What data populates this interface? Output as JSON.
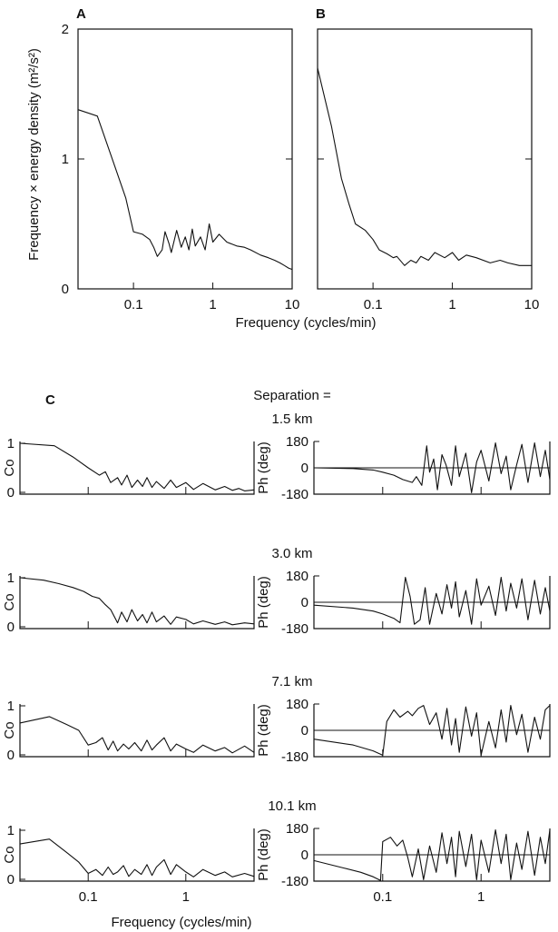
{
  "chart_data": [
    {
      "id": "A",
      "type": "line",
      "panel_label": "A",
      "xscale": "log",
      "xlim": [
        0.02,
        10
      ],
      "ylim": [
        0,
        2
      ],
      "xticks": [
        0.1,
        1,
        10
      ],
      "xtick_labels": [
        "0.1",
        "1",
        "10"
      ],
      "yticks": [
        0,
        1,
        2
      ],
      "ytick_labels": [
        "0",
        "1",
        "2"
      ],
      "x": [
        0.02,
        0.035,
        0.06,
        0.08,
        0.1,
        0.13,
        0.16,
        0.18,
        0.2,
        0.23,
        0.25,
        0.28,
        0.3,
        0.35,
        0.4,
        0.45,
        0.5,
        0.55,
        0.6,
        0.7,
        0.8,
        0.9,
        1.0,
        1.2,
        1.5,
        2,
        2.5,
        3,
        4,
        5,
        6,
        7,
        8,
        9,
        10
      ],
      "y": [
        1.38,
        1.33,
        0.92,
        0.7,
        0.44,
        0.42,
        0.38,
        0.32,
        0.25,
        0.3,
        0.44,
        0.35,
        0.28,
        0.45,
        0.32,
        0.4,
        0.3,
        0.46,
        0.33,
        0.4,
        0.3,
        0.5,
        0.36,
        0.42,
        0.36,
        0.33,
        0.32,
        0.3,
        0.26,
        0.24,
        0.22,
        0.2,
        0.18,
        0.16,
        0.15
      ]
    },
    {
      "id": "B",
      "type": "line",
      "panel_label": "B",
      "xscale": "log",
      "xlim": [
        0.02,
        10
      ],
      "ylim": [
        0,
        2
      ],
      "xticks": [
        0.1,
        1,
        10
      ],
      "xtick_labels": [
        "0.1",
        "1",
        "10"
      ],
      "yticks": [
        0,
        1,
        2
      ],
      "x": [
        0.02,
        0.03,
        0.04,
        0.05,
        0.06,
        0.08,
        0.1,
        0.12,
        0.15,
        0.18,
        0.2,
        0.25,
        0.3,
        0.35,
        0.4,
        0.5,
        0.6,
        0.8,
        1.0,
        1.2,
        1.5,
        2,
        3,
        4,
        5,
        7,
        9,
        10
      ],
      "y": [
        1.7,
        1.25,
        0.85,
        0.65,
        0.5,
        0.45,
        0.38,
        0.3,
        0.27,
        0.24,
        0.25,
        0.18,
        0.22,
        0.2,
        0.25,
        0.22,
        0.28,
        0.24,
        0.28,
        0.22,
        0.26,
        0.24,
        0.2,
        0.22,
        0.2,
        0.18,
        0.18,
        0.18
      ]
    },
    {
      "id": "C",
      "type": "line",
      "panel_label": "C",
      "title": "Separation =",
      "xscale": "log",
      "xlim": [
        0.02,
        5
      ],
      "xticks": [
        0.1,
        1
      ],
      "xtick_labels": [
        "0.1",
        "1"
      ],
      "coherence_ylim": [
        0,
        1
      ],
      "coherence_yticks": [
        0,
        1
      ],
      "coherence_ylabel": "Co",
      "phase_ylim": [
        -180,
        180
      ],
      "phase_yticks": [
        -180,
        0,
        180
      ],
      "phase_ylabel": "Ph (deg)",
      "xlabel": "Frequency (cycles/min)",
      "rows": [
        {
          "separation": "1.5 km",
          "coherence": {
            "x": [
              0.02,
              0.045,
              0.07,
              0.1,
              0.13,
              0.15,
              0.17,
              0.2,
              0.22,
              0.25,
              0.28,
              0.32,
              0.36,
              0.4,
              0.45,
              0.5,
              0.6,
              0.7,
              0.8,
              1.0,
              1.2,
              1.5,
              2,
              2.5,
              3,
              3.5,
              4,
              5
            ],
            "y": [
              1.0,
              0.95,
              0.72,
              0.5,
              0.35,
              0.42,
              0.2,
              0.3,
              0.15,
              0.35,
              0.1,
              0.25,
              0.12,
              0.3,
              0.1,
              0.22,
              0.08,
              0.25,
              0.1,
              0.2,
              0.06,
              0.18,
              0.05,
              0.12,
              0.04,
              0.08,
              0.03,
              0.05
            ]
          },
          "phase": {
            "x": [
              0.02,
              0.05,
              0.08,
              0.1,
              0.13,
              0.16,
              0.2,
              0.22,
              0.25,
              0.28,
              0.3,
              0.33,
              0.36,
              0.4,
              0.44,
              0.5,
              0.55,
              0.6,
              0.7,
              0.8,
              0.9,
              1.0,
              1.2,
              1.4,
              1.6,
              1.8,
              2.0,
              2.3,
              2.6,
              3.0,
              3.5,
              4.0,
              4.5,
              5.0
            ],
            "y": [
              0,
              -5,
              -15,
              -30,
              -50,
              -80,
              -100,
              -60,
              -120,
              150,
              -30,
              60,
              -150,
              90,
              20,
              -120,
              150,
              -60,
              100,
              -170,
              40,
              120,
              -90,
              170,
              -40,
              80,
              -150,
              20,
              160,
              -100,
              170,
              -60,
              120,
              -80
            ]
          }
        },
        {
          "separation": "3.0 km",
          "coherence": {
            "x": [
              0.02,
              0.035,
              0.05,
              0.07,
              0.09,
              0.11,
              0.13,
              0.15,
              0.17,
              0.2,
              0.22,
              0.25,
              0.28,
              0.32,
              0.36,
              0.4,
              0.45,
              0.5,
              0.6,
              0.7,
              0.8,
              1.0,
              1.2,
              1.5,
              2,
              2.5,
              3,
              4,
              5
            ],
            "y": [
              1.0,
              0.95,
              0.88,
              0.8,
              0.72,
              0.62,
              0.58,
              0.45,
              0.35,
              0.08,
              0.3,
              0.1,
              0.35,
              0.12,
              0.25,
              0.08,
              0.3,
              0.1,
              0.22,
              0.05,
              0.2,
              0.15,
              0.06,
              0.12,
              0.05,
              0.1,
              0.04,
              0.08,
              0.06
            ]
          },
          "phase": {
            "x": [
              0.02,
              0.05,
              0.08,
              0.1,
              0.13,
              0.15,
              0.17,
              0.19,
              0.21,
              0.24,
              0.27,
              0.3,
              0.35,
              0.4,
              0.45,
              0.5,
              0.55,
              0.6,
              0.7,
              0.8,
              0.9,
              1.0,
              1.2,
              1.4,
              1.6,
              1.8,
              2.0,
              2.3,
              2.6,
              3.0,
              3.5,
              4.0,
              4.5,
              5.0
            ],
            "y": [
              -20,
              -40,
              -60,
              -80,
              -110,
              -140,
              170,
              40,
              -150,
              -120,
              100,
              -150,
              60,
              -80,
              120,
              -40,
              140,
              -100,
              80,
              -150,
              160,
              -20,
              110,
              -90,
              170,
              -60,
              130,
              -40,
              160,
              -120,
              150,
              -80,
              100,
              -60
            ]
          }
        },
        {
          "separation": "7.1 km",
          "coherence": {
            "x": [
              0.02,
              0.04,
              0.06,
              0.08,
              0.1,
              0.12,
              0.14,
              0.16,
              0.18,
              0.2,
              0.23,
              0.26,
              0.3,
              0.35,
              0.4,
              0.45,
              0.5,
              0.6,
              0.7,
              0.8,
              1.0,
              1.2,
              1.5,
              2,
              2.5,
              3,
              4,
              5
            ],
            "y": [
              0.65,
              0.78,
              0.62,
              0.5,
              0.2,
              0.25,
              0.35,
              0.1,
              0.28,
              0.08,
              0.22,
              0.12,
              0.25,
              0.08,
              0.3,
              0.1,
              0.2,
              0.35,
              0.08,
              0.22,
              0.12,
              0.05,
              0.2,
              0.08,
              0.15,
              0.04,
              0.18,
              0.05
            ]
          },
          "phase": {
            "x": [
              0.02,
              0.05,
              0.08,
              0.1,
              0.11,
              0.13,
              0.15,
              0.18,
              0.2,
              0.23,
              0.26,
              0.3,
              0.35,
              0.4,
              0.45,
              0.5,
              0.55,
              0.6,
              0.7,
              0.8,
              0.9,
              1.0,
              1.2,
              1.4,
              1.6,
              1.8,
              2.0,
              2.3,
              2.6,
              3.0,
              3.5,
              4.0,
              4.5,
              5.0
            ],
            "y": [
              -60,
              -100,
              -140,
              -170,
              60,
              140,
              90,
              130,
              100,
              150,
              170,
              40,
              120,
              -60,
              150,
              -100,
              80,
              -150,
              160,
              -40,
              120,
              -170,
              60,
              -120,
              140,
              -80,
              170,
              -30,
              110,
              -150,
              90,
              -60,
              140,
              170
            ]
          }
        },
        {
          "separation": "10.1 km",
          "coherence": {
            "x": [
              0.02,
              0.04,
              0.06,
              0.08,
              0.1,
              0.12,
              0.14,
              0.16,
              0.18,
              0.2,
              0.23,
              0.26,
              0.3,
              0.35,
              0.4,
              0.45,
              0.5,
              0.6,
              0.7,
              0.8,
              1.0,
              1.2,
              1.5,
              2,
              2.5,
              3,
              4,
              5
            ],
            "y": [
              0.72,
              0.82,
              0.55,
              0.35,
              0.12,
              0.2,
              0.08,
              0.25,
              0.1,
              0.15,
              0.28,
              0.06,
              0.2,
              0.1,
              0.3,
              0.08,
              0.25,
              0.4,
              0.1,
              0.3,
              0.15,
              0.05,
              0.2,
              0.08,
              0.15,
              0.05,
              0.12,
              0.06
            ]
          },
          "phase": {
            "x": [
              0.02,
              0.04,
              0.06,
              0.08,
              0.095,
              0.1,
              0.12,
              0.14,
              0.16,
              0.18,
              0.2,
              0.23,
              0.26,
              0.3,
              0.35,
              0.4,
              0.45,
              0.5,
              0.55,
              0.6,
              0.7,
              0.8,
              0.9,
              1.0,
              1.2,
              1.4,
              1.6,
              1.8,
              2.0,
              2.3,
              2.6,
              3.0,
              3.5,
              4.0,
              4.5,
              5.0
            ],
            "y": [
              -40,
              -90,
              -120,
              -150,
              -175,
              90,
              120,
              60,
              100,
              -20,
              -150,
              40,
              -170,
              60,
              -120,
              150,
              -60,
              120,
              -150,
              160,
              -80,
              140,
              -170,
              100,
              -120,
              170,
              -60,
              140,
              -170,
              80,
              -100,
              160,
              -140,
              120,
              -60,
              170
            ]
          }
        }
      ]
    }
  ],
  "labels": {
    "ab_ylabel": "Frequency × energy density (m²/s²)",
    "ab_xlabel": "Frequency (cycles/min)"
  }
}
